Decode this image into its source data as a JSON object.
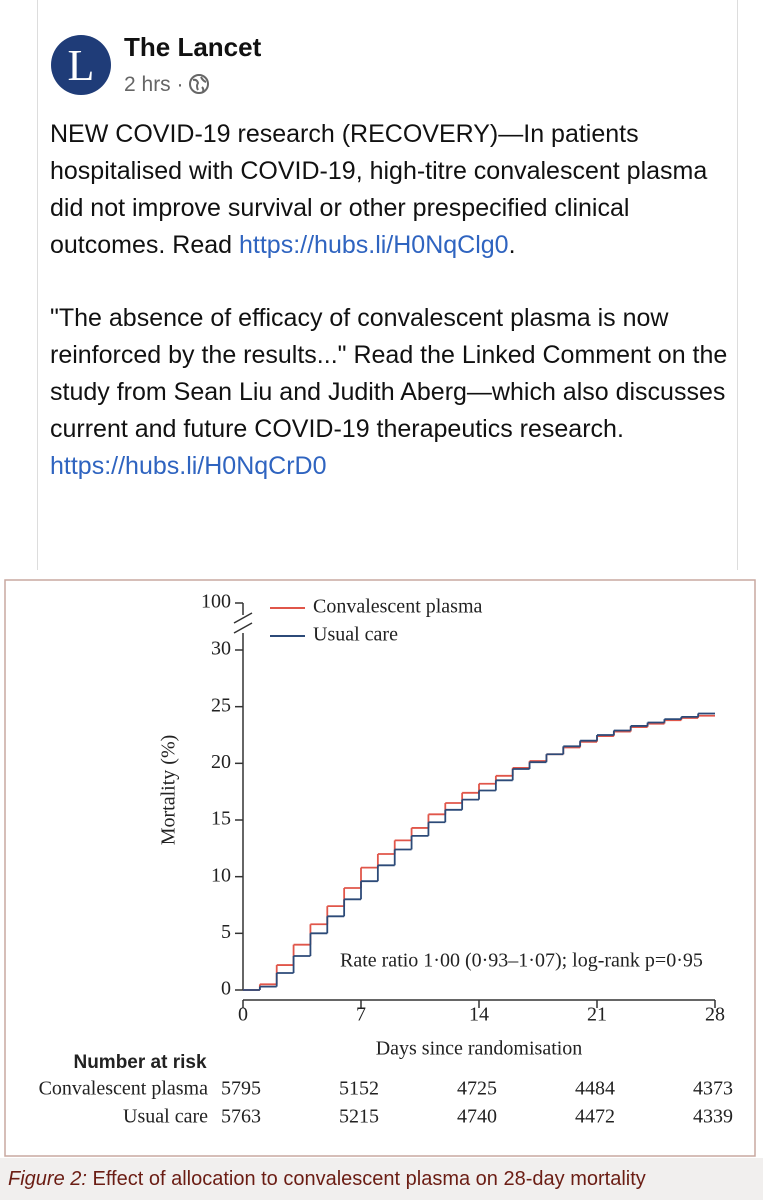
{
  "post": {
    "avatar_letter": "L",
    "author": "The Lancet",
    "time": "2 hrs",
    "separator": "·",
    "paragraphs": [
      [
        {
          "text": "NEW COVID-19 research (RECOVERY)—In patients hospitalised with COVID-19, high-titre convalescent plasma did not improve survival or other prespecified clinical outcomes. Read "
        },
        {
          "link": "https://hubs.li/H0NqClg0"
        },
        {
          "text": "."
        }
      ],
      [
        {
          "text": "\"The absence of efficacy of convalescent plasma is now reinforced by the results...\" Read the Linked Comment on the study from Sean Liu and Judith Aberg—which also discusses current and future COVID-19 therapeutics research. "
        },
        {
          "link": "https://hubs.li/H0NqCrD0"
        }
      ]
    ]
  },
  "chart_data": {
    "type": "step",
    "xlabel": "Days since randomisation",
    "ylabel": "Mortality (%)",
    "annotation": "Rate ratio 1·00 (0·93–1·07); log-rank p=0·95",
    "x": [
      0,
      1,
      2,
      3,
      4,
      5,
      6,
      7,
      8,
      9,
      10,
      11,
      12,
      13,
      14,
      15,
      16,
      17,
      18,
      19,
      20,
      21,
      22,
      23,
      24,
      25,
      26,
      27
    ],
    "series": [
      {
        "name": "Convalescent plasma",
        "color": "#e0564a",
        "values": [
          0,
          0.5,
          2.2,
          4.0,
          5.8,
          7.4,
          9.0,
          10.8,
          12.0,
          13.2,
          14.3,
          15.5,
          16.5,
          17.4,
          18.2,
          18.9,
          19.6,
          20.2,
          20.8,
          21.4,
          21.9,
          22.4,
          22.8,
          23.2,
          23.5,
          23.8,
          24.0,
          24.2
        ]
      },
      {
        "name": "Usual care",
        "color": "#2c4a78",
        "values": [
          0,
          0.3,
          1.5,
          3.0,
          5.0,
          6.5,
          8.0,
          9.6,
          11.0,
          12.4,
          13.6,
          14.8,
          15.9,
          16.8,
          17.6,
          18.5,
          19.5,
          20.1,
          20.8,
          21.5,
          22.0,
          22.5,
          22.9,
          23.3,
          23.6,
          23.9,
          24.1,
          24.4
        ]
      }
    ],
    "xlim": [
      0,
      28
    ],
    "xticks": [
      0,
      7,
      14,
      21,
      28
    ],
    "ylim": [
      0,
      30
    ],
    "yticks": [
      0,
      5,
      10,
      15,
      20,
      25,
      30,
      100
    ],
    "y_axis_break": true,
    "legend": "top-left",
    "risk_table": {
      "title": "Number at risk",
      "rows": [
        {
          "name": "Convalescent plasma",
          "values": [
            5795,
            5152,
            4725,
            4484,
            4373
          ]
        },
        {
          "name": "Usual care",
          "values": [
            5763,
            5215,
            4740,
            4472,
            4339
          ]
        }
      ]
    },
    "caption_label": "Figure 2:",
    "caption": "Effect of allocation to convalescent plasma on 28-day mortality"
  }
}
